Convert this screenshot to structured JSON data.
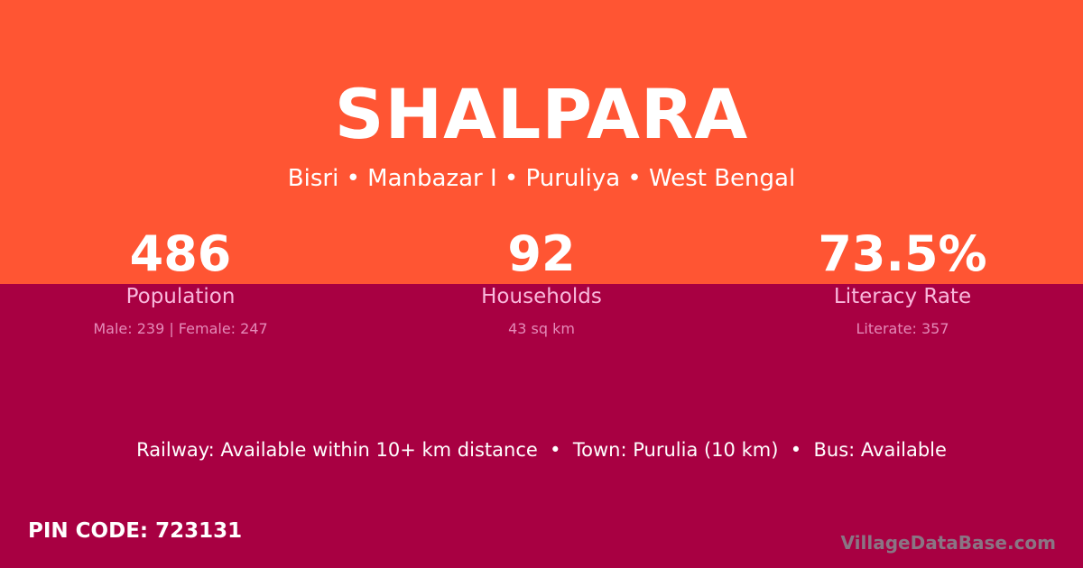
{
  "colors": {
    "top_bg": "#ff5533",
    "bottom_bg": "#a80042",
    "label": "#f9b8dc"
  },
  "village": "SHALPARA",
  "location": "Bisri • Manbazar I • Puruliya • West Bengal",
  "stats": [
    {
      "value": "486",
      "label": "Population",
      "sub": "Male: 239 | Female: 247"
    },
    {
      "value": "92",
      "label": "Households",
      "sub": "43 sq km"
    },
    {
      "value": "73.5%",
      "label": "Literacy Rate",
      "sub": "Literate: 357"
    }
  ],
  "amenities": "Railway: Available within 10+ km distance  •  Town: Purulia (10 km)  •  Bus: Available",
  "pin": "PIN CODE: 723131",
  "brand": "VillageDataBase.com"
}
